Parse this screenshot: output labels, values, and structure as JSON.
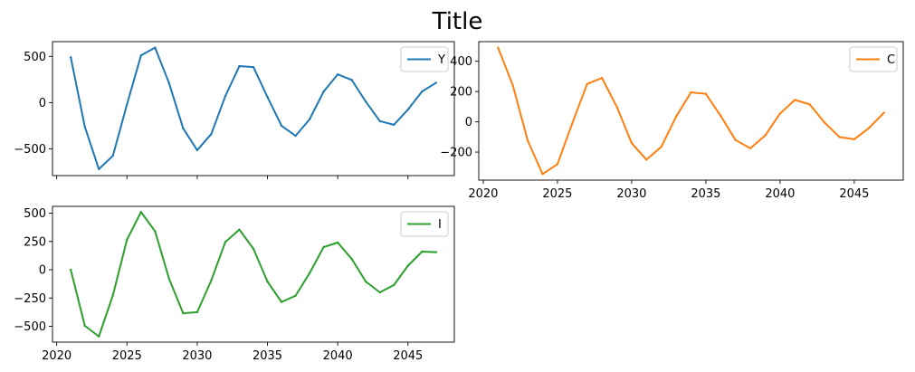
{
  "figure": {
    "title": "Title"
  },
  "chart_data": [
    {
      "type": "line",
      "series": [
        {
          "name": "Y",
          "color": "#1f77b4",
          "x": [
            2021,
            2022,
            2023,
            2024,
            2025,
            2026,
            2027,
            2028,
            2029,
            2030,
            2031,
            2032,
            2033,
            2034,
            2035,
            2036,
            2037,
            2038,
            2039,
            2040,
            2041,
            2042,
            2043,
            2044,
            2045,
            2046,
            2047
          ],
          "values": [
            490,
            -260,
            -720,
            -575,
            -20,
            510,
            595,
            210,
            -280,
            -515,
            -340,
            70,
            395,
            385,
            60,
            -250,
            -360,
            -180,
            120,
            305,
            245,
            10,
            -200,
            -240,
            -75,
            120,
            215
          ]
        }
      ],
      "xlim": [
        2019.7,
        2048.3
      ],
      "ylim": [
        -790,
        660
      ],
      "xticks": [
        2020,
        2025,
        2030,
        2035,
        2040,
        2045
      ],
      "yticks": [
        -500,
        0,
        500
      ],
      "show_xticklabels": false,
      "legend": "upper-right",
      "grid": false
    },
    {
      "type": "line",
      "series": [
        {
          "name": "C",
          "color": "#ff7f0e",
          "x": [
            2021,
            2022,
            2023,
            2024,
            2025,
            2026,
            2027,
            2028,
            2029,
            2030,
            2031,
            2032,
            2033,
            2034,
            2035,
            2036,
            2037,
            2038,
            2039,
            2040,
            2041,
            2042,
            2043,
            2044,
            2045,
            2046,
            2047
          ],
          "values": [
            490,
            240,
            -125,
            -345,
            -280,
            -10,
            250,
            290,
            100,
            -140,
            -250,
            -165,
            35,
            195,
            185,
            40,
            -120,
            -175,
            -90,
            55,
            145,
            115,
            -5,
            -100,
            -115,
            -40,
            60
          ]
        }
      ],
      "xlim": [
        2019.7,
        2048.3
      ],
      "ylim": [
        -385,
        530
      ],
      "xticks": [
        2020,
        2025,
        2030,
        2035,
        2040,
        2045
      ],
      "yticks": [
        -200,
        0,
        200,
        400
      ],
      "show_xticklabels": true,
      "legend": "upper-right",
      "grid": false
    },
    {
      "type": "line",
      "series": [
        {
          "name": "I",
          "color": "#2ca02c",
          "x": [
            2021,
            2022,
            2023,
            2024,
            2025,
            2026,
            2027,
            2028,
            2029,
            2030,
            2031,
            2032,
            2033,
            2034,
            2035,
            2036,
            2037,
            2038,
            2039,
            2040,
            2041,
            2042,
            2043,
            2044,
            2045,
            2046,
            2047
          ],
          "values": [
            0,
            -495,
            -590,
            -225,
            265,
            510,
            340,
            -80,
            -385,
            -375,
            -95,
            245,
            355,
            185,
            -105,
            -285,
            -230,
            -30,
            200,
            240,
            95,
            -105,
            -200,
            -135,
            35,
            160,
            155
          ]
        }
      ],
      "xlim": [
        2019.7,
        2048.3
      ],
      "ylim": [
        -640,
        560
      ],
      "xticks": [
        2020,
        2025,
        2030,
        2035,
        2040,
        2045
      ],
      "yticks": [
        -500,
        -250,
        0,
        250,
        500
      ],
      "show_xticklabels": true,
      "legend": "upper-right",
      "grid": false
    }
  ]
}
